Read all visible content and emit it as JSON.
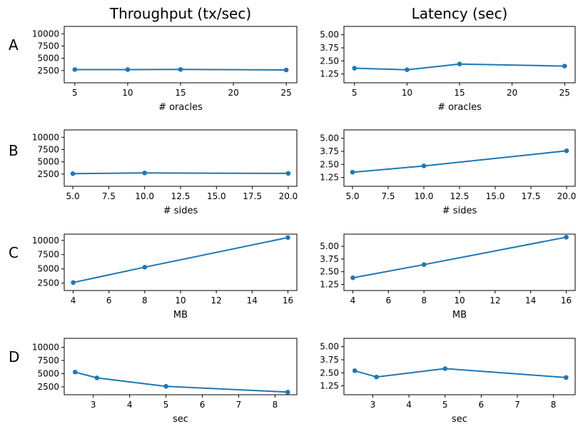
{
  "column_titles": [
    "Throughput (tx/sec)",
    "Latency (sec)"
  ],
  "row_labels": [
    "A",
    "B",
    "C",
    "D"
  ],
  "line_color": "#1f77b4",
  "chart_data": [
    {
      "type": "line",
      "row": "A",
      "metric": "Throughput (tx/sec)",
      "xlabel": "# oracles",
      "ylabel": "",
      "x": [
        5,
        10,
        15,
        20,
        25
      ],
      "xticks": [
        5,
        10,
        15,
        20,
        25
      ],
      "xlim": [
        4.0,
        26.0
      ],
      "series": [
        {
          "x": [
            5,
            10,
            15,
            25
          ],
          "values": [
            2700,
            2700,
            2730,
            2620
          ]
        }
      ],
      "yticks": [
        2500,
        5000,
        7500,
        10000
      ],
      "ylim": [
        0,
        11500
      ]
    },
    {
      "type": "line",
      "row": "A",
      "metric": "Latency (sec)",
      "xlabel": "# oracles",
      "ylabel": "",
      "xticks": [
        5,
        10,
        15,
        20,
        25
      ],
      "xlim": [
        4.0,
        26.0
      ],
      "series": [
        {
          "x": [
            5,
            10,
            15,
            25
          ],
          "values": [
            1.8,
            1.65,
            2.2,
            2.0
          ]
        }
      ],
      "yticks": [
        1.25,
        2.5,
        3.75,
        5.0
      ],
      "yticklabels": [
        "1.25",
        "2.50",
        "3.75",
        "5.00"
      ],
      "ylim": [
        0.4,
        5.8
      ]
    },
    {
      "type": "line",
      "row": "B",
      "metric": "Throughput (tx/sec)",
      "xlabel": "# sides",
      "ylabel": "",
      "xticks": [
        5.0,
        7.5,
        10.0,
        12.5,
        15.0,
        17.5,
        20.0
      ],
      "xticklabels": [
        "5.0",
        "7.5",
        "10.0",
        "12.5",
        "15.0",
        "17.5",
        "20.0"
      ],
      "xlim": [
        4.4,
        20.6
      ],
      "series": [
        {
          "x": [
            5,
            10,
            20
          ],
          "values": [
            2580,
            2720,
            2640
          ]
        }
      ],
      "yticks": [
        2500,
        5000,
        7500,
        10000
      ],
      "ylim": [
        0,
        11500
      ]
    },
    {
      "type": "line",
      "row": "B",
      "metric": "Latency (sec)",
      "xlabel": "# sides",
      "ylabel": "",
      "xticks": [
        5.0,
        7.5,
        10.0,
        12.5,
        15.0,
        17.5,
        20.0
      ],
      "xticklabels": [
        "5.0",
        "7.5",
        "10.0",
        "12.5",
        "15.0",
        "17.5",
        "20.0"
      ],
      "xlim": [
        4.4,
        20.6
      ],
      "series": [
        {
          "x": [
            5,
            10,
            20
          ],
          "values": [
            1.75,
            2.35,
            3.8
          ]
        }
      ],
      "yticks": [
        1.25,
        2.5,
        3.75,
        5.0
      ],
      "yticklabels": [
        "1.25",
        "2.50",
        "3.75",
        "5.00"
      ],
      "ylim": [
        0.4,
        5.8
      ]
    },
    {
      "type": "line",
      "row": "C",
      "metric": "Throughput (tx/sec)",
      "xlabel": "MB",
      "ylabel": "",
      "xticks": [
        4,
        6,
        8,
        10,
        12,
        14,
        16
      ],
      "xlim": [
        3.5,
        16.5
      ],
      "series": [
        {
          "x": [
            4,
            8,
            16
          ],
          "values": [
            2600,
            5300,
            10500
          ]
        }
      ],
      "yticks": [
        2500,
        5000,
        7500,
        10000
      ],
      "ylim": [
        1200,
        11100
      ]
    },
    {
      "type": "line",
      "row": "C",
      "metric": "Latency (sec)",
      "xlabel": "MB",
      "ylabel": "",
      "xticks": [
        4,
        6,
        8,
        10,
        12,
        14,
        16
      ],
      "xlim": [
        3.5,
        16.5
      ],
      "series": [
        {
          "x": [
            4,
            8,
            16
          ],
          "values": [
            1.9,
            3.2,
            5.9
          ]
        }
      ],
      "yticks": [
        1.25,
        2.5,
        3.75,
        5.0
      ],
      "yticklabels": [
        "1.25",
        "2.50",
        "3.75",
        "5.00"
      ],
      "ylim": [
        0.65,
        6.2
      ]
    },
    {
      "type": "line",
      "row": "D",
      "metric": "Throughput (tx/sec)",
      "xlabel": "sec",
      "ylabel": "",
      "xticks": [
        3,
        4,
        5,
        6,
        7,
        8
      ],
      "xlim": [
        2.2,
        8.6
      ],
      "series": [
        {
          "x": [
            2.5,
            3.1,
            5.0,
            8.35
          ],
          "values": [
            5300,
            4200,
            2600,
            1500
          ]
        }
      ],
      "yticks": [
        2500,
        5000,
        7500,
        10000
      ],
      "ylim": [
        1000,
        11700
      ]
    },
    {
      "type": "line",
      "row": "D",
      "metric": "Latency (sec)",
      "xlabel": "sec",
      "ylabel": "",
      "xticks": [
        3,
        4,
        5,
        6,
        7,
        8
      ],
      "xlim": [
        2.2,
        8.6
      ],
      "series": [
        {
          "x": [
            2.5,
            3.1,
            5.0,
            8.35
          ],
          "values": [
            2.7,
            2.1,
            2.9,
            2.05
          ]
        }
      ],
      "yticks": [
        1.25,
        2.5,
        3.75,
        5.0
      ],
      "yticklabels": [
        "1.25",
        "2.50",
        "3.75",
        "5.00"
      ],
      "ylim": [
        0.4,
        5.8
      ]
    }
  ]
}
